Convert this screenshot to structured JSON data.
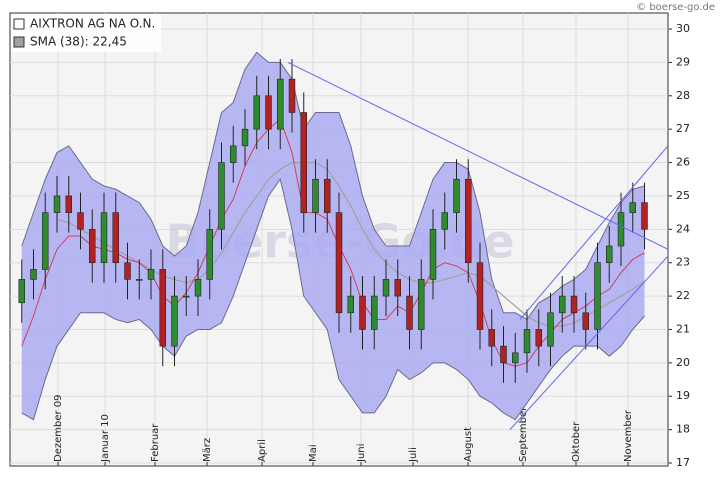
{
  "chart_data": {
    "type": "candlestick",
    "watermark": "Boerse-Go.de",
    "source": "© boerse-go.de",
    "grid": true,
    "xlim": [
      -1,
      55
    ],
    "ylim": [
      16.91,
      30.48
    ],
    "yticks": [
      17,
      18,
      19,
      20,
      21,
      22,
      23,
      24,
      25,
      26,
      27,
      28,
      29,
      30
    ],
    "xticks": [
      {
        "value": 3.09,
        "label": "Dezember 09"
      },
      {
        "value": 7.09,
        "label": "Januar 10"
      },
      {
        "value": 11.34,
        "label": "Februar"
      },
      {
        "value": 15.77,
        "label": "März"
      },
      {
        "value": 20.45,
        "label": "April"
      },
      {
        "value": 24.79,
        "label": "Mai"
      },
      {
        "value": 28.87,
        "label": "Juni"
      },
      {
        "value": 33.3,
        "label": "Juli"
      },
      {
        "value": 37.98,
        "label": "August"
      },
      {
        "value": 42.66,
        "label": "September"
      },
      {
        "value": 47.17,
        "label": "Oktober"
      },
      {
        "value": 51.6,
        "label": "November"
      }
    ],
    "x": [
      0,
      1,
      2,
      3,
      4,
      5,
      6,
      7,
      8,
      9,
      10,
      11,
      12,
      13,
      14,
      15,
      16,
      17,
      18,
      19,
      20,
      21,
      22,
      23,
      24,
      25,
      26,
      27,
      28,
      29,
      30,
      31,
      32,
      33,
      34,
      35,
      36,
      37,
      38,
      39,
      40,
      41,
      42,
      43,
      44,
      45,
      46,
      47,
      48,
      49,
      50,
      51,
      52,
      53
    ],
    "series": [
      {
        "name": "AIXTRON AG NA O.N.",
        "type": "candlestick",
        "color": "#ffffff",
        "up_color": "#2e8b2e",
        "down_color": "#b22222",
        "open": [
          21.8,
          22.5,
          22.8,
          24.5,
          25,
          24.5,
          24,
          23,
          24.5,
          23,
          22.5,
          22.5,
          22.8,
          20.5,
          22,
          22,
          22.5,
          24,
          26,
          26.5,
          27,
          28,
          27,
          28.5,
          27.5,
          24.5,
          25.5,
          24.5,
          21.5,
          22,
          21,
          22,
          22.5,
          22,
          21,
          22.5,
          24,
          24.5,
          25.5,
          23,
          21,
          20.5,
          20,
          20.3,
          21,
          20.5,
          21.5,
          22,
          21.5,
          21,
          23,
          23.5,
          24.5,
          24.8
        ],
        "high": [
          23.1,
          23.4,
          25.1,
          25.6,
          25.6,
          25.1,
          24.6,
          25.1,
          25.1,
          23.6,
          23.1,
          23.4,
          23.4,
          22.6,
          22.6,
          23.1,
          24.6,
          26.6,
          27.1,
          27.6,
          28.6,
          28.6,
          29.1,
          29.1,
          28.1,
          26.1,
          26.1,
          25.1,
          22.6,
          22.6,
          22.6,
          23.1,
          23.1,
          22.6,
          23.1,
          24.6,
          25.1,
          26.1,
          26.1,
          23.6,
          21.6,
          21.1,
          20.9,
          21.6,
          21.6,
          22.1,
          22.6,
          22.6,
          22.1,
          23.6,
          24.1,
          25.1,
          25.4,
          25.4
        ],
        "low": [
          21.2,
          21.9,
          22.2,
          23.9,
          23.9,
          23.4,
          22.4,
          22.4,
          22.4,
          21.9,
          21.9,
          21.9,
          19.9,
          19.9,
          21.4,
          21.4,
          21.9,
          23.4,
          25.4,
          25.9,
          26.4,
          26.4,
          26.4,
          26.9,
          23.9,
          23.9,
          23.9,
          20.9,
          20.9,
          20.4,
          20.4,
          21.4,
          21.4,
          20.4,
          20.4,
          21.9,
          23.4,
          23.9,
          22.4,
          20.4,
          19.9,
          19.4,
          19.4,
          19.7,
          19.9,
          19.9,
          20.9,
          20.9,
          20.4,
          20.4,
          22.4,
          22.9,
          23.9,
          23.4
        ],
        "close": [
          22.5,
          22.8,
          24.5,
          25,
          24.5,
          24,
          23,
          24.5,
          23,
          22.5,
          22.5,
          22.8,
          20.5,
          22,
          22,
          22.5,
          24,
          26,
          26.5,
          27,
          28,
          27,
          28.5,
          27.5,
          24.5,
          25.5,
          24.5,
          21.5,
          22,
          21,
          22,
          22.5,
          22,
          21,
          22.5,
          24,
          24.5,
          25.5,
          23,
          21,
          20.5,
          20,
          20.3,
          21,
          20.5,
          21.5,
          22,
          21.5,
          21,
          23,
          23.5,
          24.5,
          24.8,
          24
        ]
      },
      {
        "name": "SMA (38): 22,45",
        "type": "line",
        "color": "#a0a0a0",
        "values": [
          null,
          null,
          null,
          24.3,
          24.2,
          24,
          23.8,
          23.6,
          23.4,
          23.2,
          23,
          22.8,
          22.6,
          22.5,
          22.4,
          22.5,
          22.8,
          23.3,
          23.9,
          24.5,
          25,
          25.5,
          25.8,
          26,
          26,
          26,
          25.8,
          25.3,
          24.7,
          24,
          23.4,
          23,
          22.7,
          22.5,
          22.4,
          22.4,
          22.5,
          22.6,
          22.7,
          22.6,
          22.3,
          22,
          21.7,
          21.4,
          21.2,
          21.1,
          21.1,
          21.2,
          21.4,
          21.6,
          21.8,
          22,
          22.2,
          22.45
        ]
      }
    ],
    "bands": {
      "fill": "#aaaaf2",
      "edge_color": "#6a6a8a",
      "middle_color": "#d0405a",
      "upper": [
        23.5,
        24.5,
        25.5,
        26.3,
        26.5,
        26,
        25.5,
        25.3,
        25.2,
        25,
        24.8,
        24.3,
        23.5,
        23.2,
        23.5,
        24.5,
        26,
        27.5,
        27.8,
        28.8,
        29.3,
        29,
        29,
        28.5,
        27,
        27.5,
        27.5,
        27.5,
        26.5,
        25,
        24,
        23.5,
        23.5,
        23.5,
        24.5,
        25.5,
        26,
        26,
        25.8,
        24.5,
        22.5,
        21.5,
        21.5,
        21.3,
        21.8,
        22,
        22.3,
        22.5,
        22.8,
        23.5,
        24.2,
        24.8,
        25.2,
        25.3
      ],
      "lower": [
        18.5,
        18.3,
        19.5,
        20.5,
        21,
        21.5,
        21.5,
        21.5,
        21.3,
        21.2,
        21.3,
        21,
        20.5,
        20.2,
        20.8,
        21,
        21,
        21.2,
        22,
        23,
        24,
        25,
        25.5,
        24,
        22,
        21.5,
        21,
        19.5,
        19,
        18.5,
        18.5,
        19,
        19.8,
        19.5,
        19.7,
        20,
        20,
        19.8,
        19.5,
        19,
        18.8,
        18.5,
        18.3,
        18.8,
        19.3,
        19.8,
        20.2,
        20.5,
        20.5,
        20.5,
        20.2,
        20.5,
        21,
        21.4
      ],
      "middle": [
        20.5,
        21.4,
        22.5,
        23.4,
        23.8,
        23.8,
        23.5,
        23.4,
        23.3,
        23.1,
        23,
        22.7,
        22,
        21.7,
        22.1,
        22.7,
        23.5,
        24.3,
        24.9,
        25.9,
        26.6,
        27,
        27.3,
        26.3,
        24.5,
        24.5,
        24.3,
        23.5,
        22.8,
        21.8,
        21.3,
        21.3,
        21.7,
        21.5,
        22.1,
        22.8,
        23,
        22.9,
        22.7,
        21.8,
        20.7,
        20,
        19.9,
        20,
        20.5,
        20.9,
        21.3,
        21.5,
        21.7,
        22,
        22.2,
        22.7,
        23.1,
        23.3
      ]
    },
    "trendline_color": "#6666ee",
    "trendlines": [
      {
        "x": [
          22.66,
          55
        ],
        "y": [
          29,
          23.4
        ]
      },
      {
        "x": [
          42.4,
          55
        ],
        "y": [
          21.3,
          26.5
        ]
      },
      {
        "x": [
          41.55,
          55
        ],
        "y": [
          18,
          23.2
        ]
      }
    ]
  }
}
